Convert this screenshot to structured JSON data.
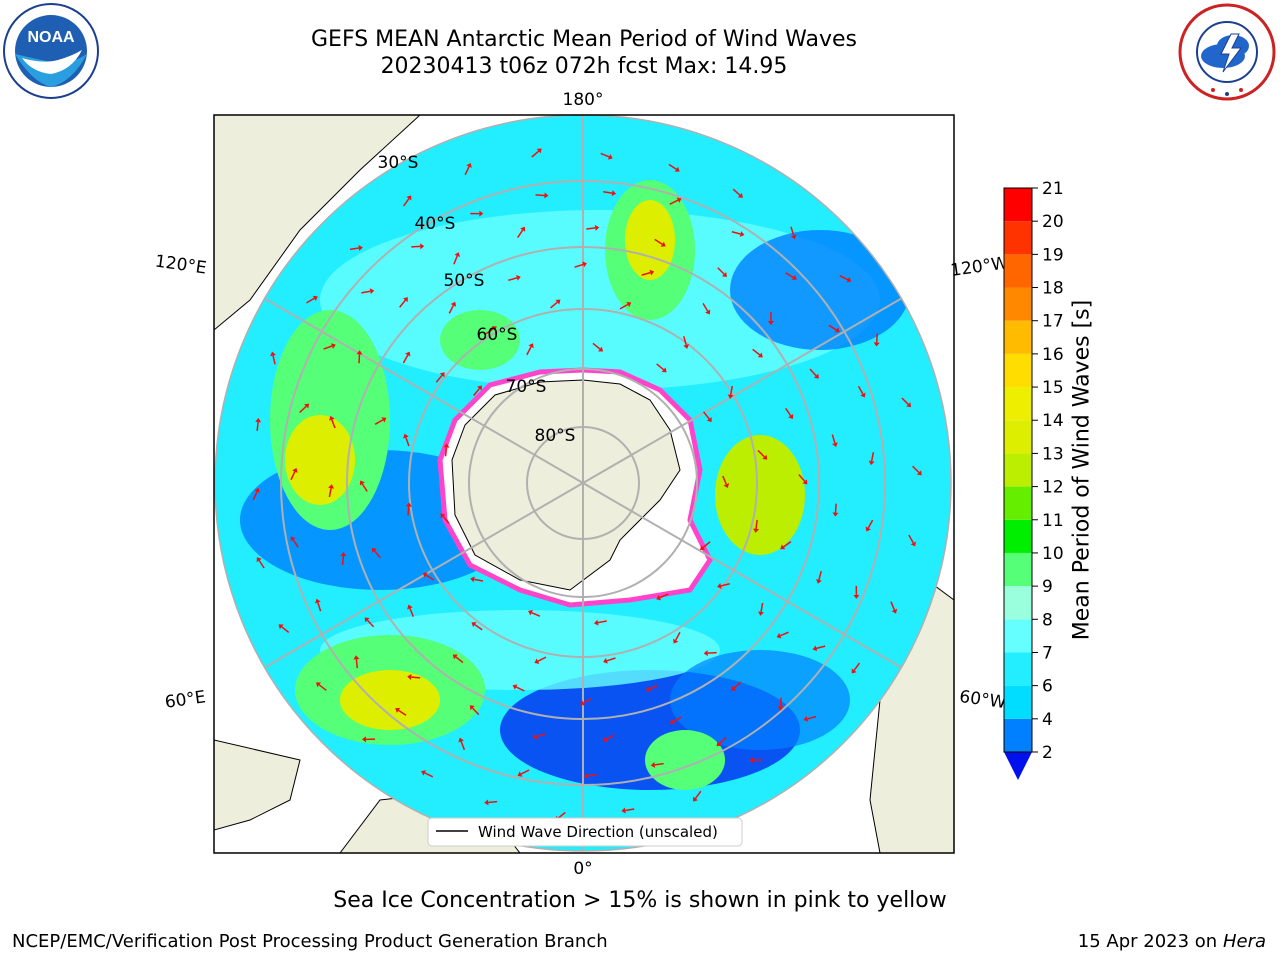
{
  "title": {
    "line1": "GEFS MEAN Antarctic Mean Period of Wind Waves",
    "line2": "20230413 t06z 072h fcst   Max: 14.95"
  },
  "logos": {
    "left": "NOAA",
    "right": "NATIONAL WEATHER SERVICE"
  },
  "map": {
    "projection": "south-polar-stereographic",
    "meridian_labels": {
      "top": "180°",
      "bottom": "0°",
      "upper_left": "120°E",
      "upper_right": "120°W",
      "lower_left": "60°E",
      "lower_right": "60°W"
    },
    "parallel_labels": [
      "30°S",
      "40°S",
      "50°S",
      "60°S",
      "70°S",
      "80°S"
    ],
    "legend": "Wind Wave Direction (unscaled)",
    "colors": {
      "land": "#eeeedc",
      "ice_edge": "#ff44cc",
      "arrow": "#ee1111",
      "grid": "#b0b0b0"
    }
  },
  "colorbar": {
    "label": "Mean Period of Wind Waves [s]",
    "ticks": [
      "2",
      "4",
      "6",
      "7",
      "8",
      "9",
      "10",
      "11",
      "12",
      "13",
      "14",
      "15",
      "16",
      "17",
      "18",
      "19",
      "20",
      "21"
    ],
    "bins": [
      {
        "from": 2,
        "to": 4,
        "color": "#0080ff"
      },
      {
        "from": 4,
        "to": 6,
        "color": "#00ddff"
      },
      {
        "from": 6,
        "to": 7,
        "color": "#22eeff"
      },
      {
        "from": 7,
        "to": 8,
        "color": "#66ffff"
      },
      {
        "from": 8,
        "to": 9,
        "color": "#99ffdd"
      },
      {
        "from": 9,
        "to": 10,
        "color": "#55ff77"
      },
      {
        "from": 10,
        "to": 11,
        "color": "#00ee00"
      },
      {
        "from": 11,
        "to": 12,
        "color": "#66ee00"
      },
      {
        "from": 12,
        "to": 13,
        "color": "#bbee00"
      },
      {
        "from": 13,
        "to": 14,
        "color": "#ddee00"
      },
      {
        "from": 14,
        "to": 15,
        "color": "#eeee00"
      },
      {
        "from": 15,
        "to": 16,
        "color": "#ffdd00"
      },
      {
        "from": 16,
        "to": 17,
        "color": "#ffbb00"
      },
      {
        "from": 17,
        "to": 18,
        "color": "#ff8800"
      },
      {
        "from": 18,
        "to": 19,
        "color": "#ff6600"
      },
      {
        "from": 19,
        "to": 20,
        "color": "#ff3300"
      },
      {
        "from": 20,
        "to": 21,
        "color": "#ff0000"
      }
    ],
    "extend_color": "#0011ee"
  },
  "caption": "Sea Ice Concentration > 15% is shown in pink to yellow",
  "footer": {
    "left": "NCEP/EMC/Verification Post Processing Product Generation Branch",
    "right_date": "15 Apr 2023 on ",
    "right_host": "Hera"
  }
}
